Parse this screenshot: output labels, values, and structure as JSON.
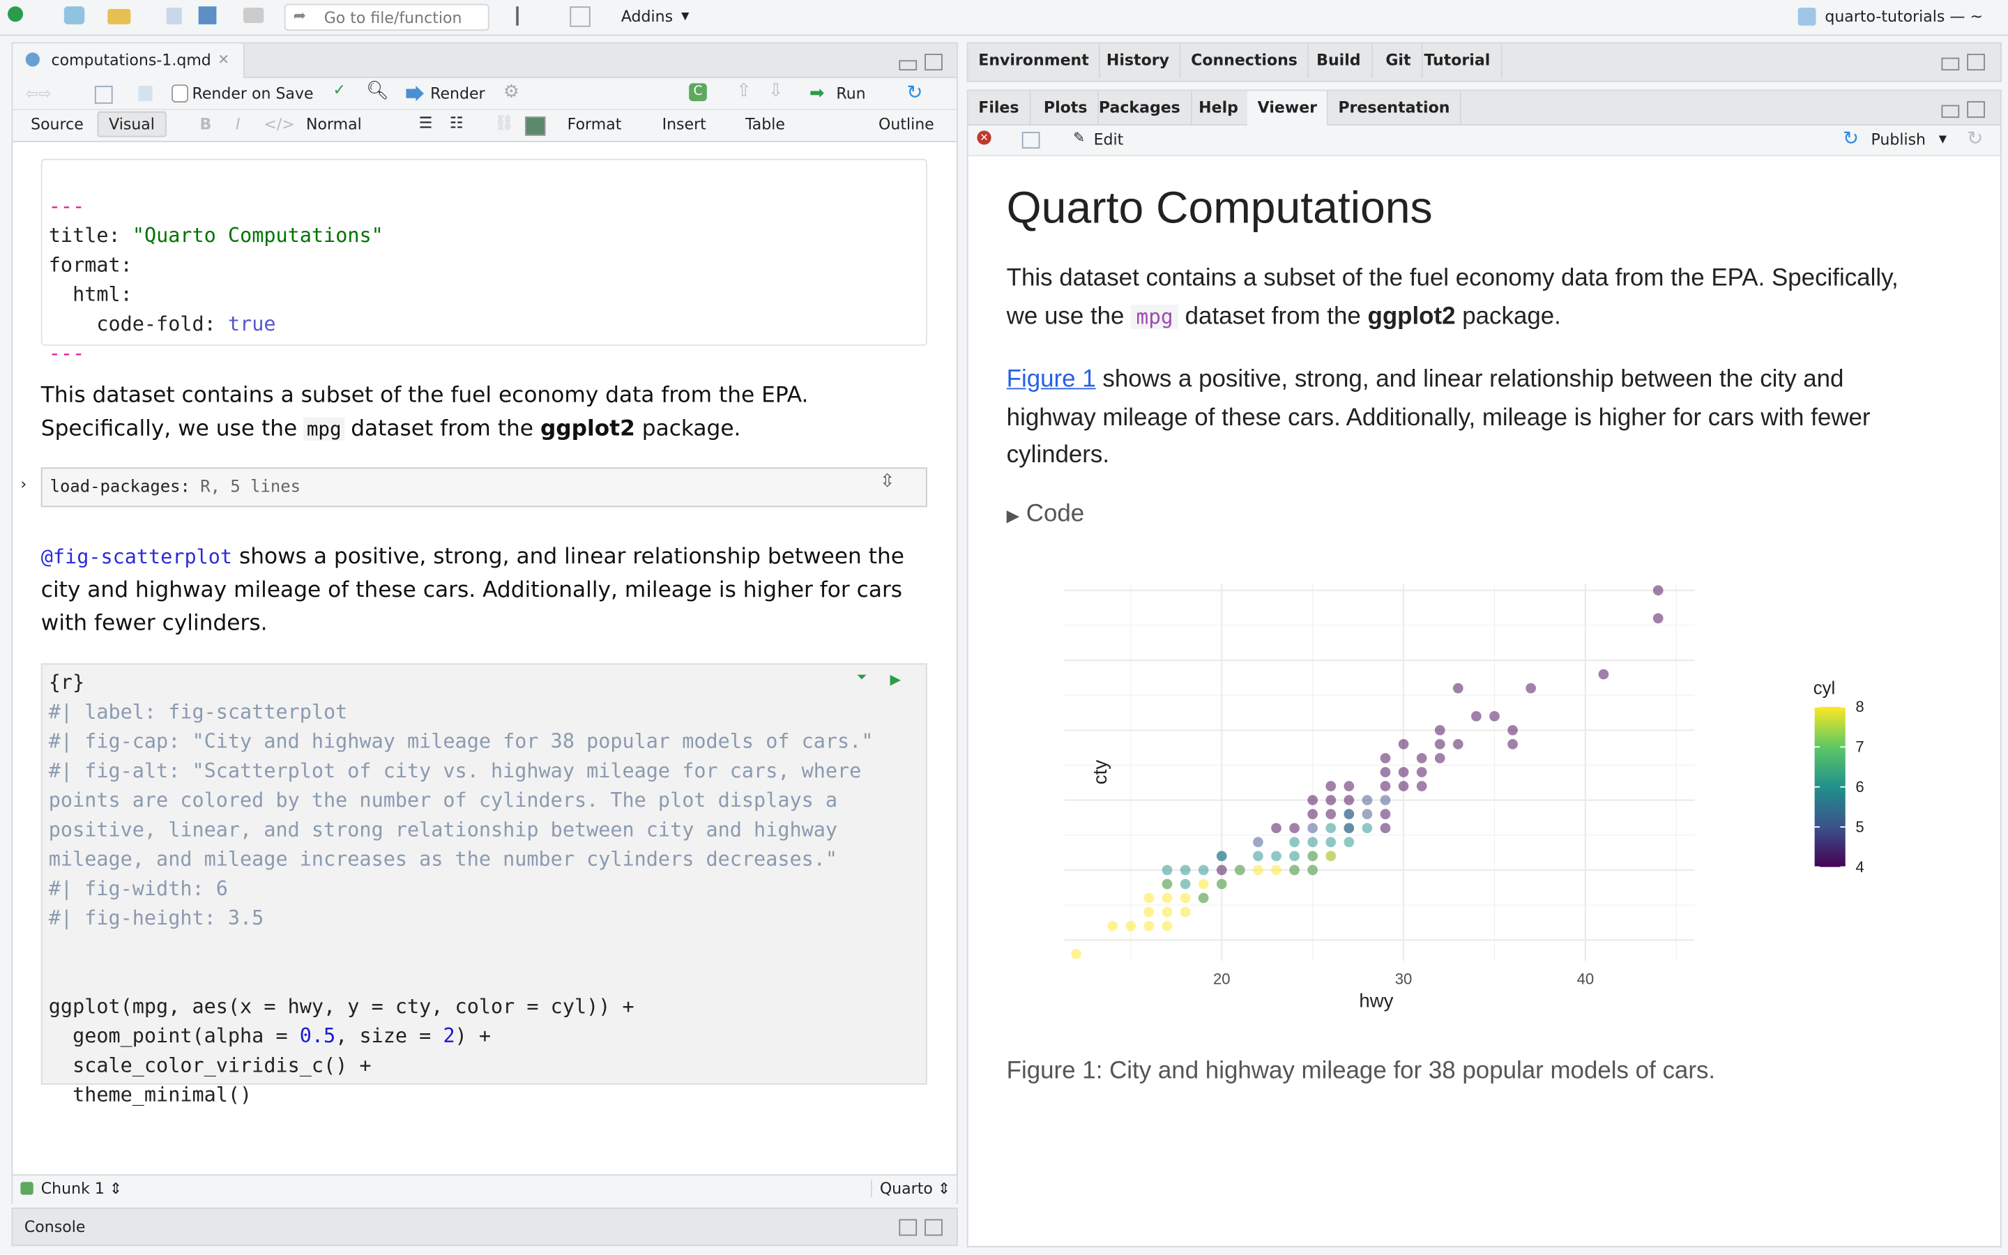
{
  "toolbar": {
    "goto_placeholder": "Go to file/function",
    "addins": "Addins",
    "project": "quarto-tutorials — ~"
  },
  "editor": {
    "tab": "computations-1.qmd",
    "render_on_save": "Render on Save",
    "render": "Render",
    "run": "Run",
    "source": "Source",
    "visual": "Visual",
    "normal": "Normal",
    "format": "Format",
    "insert": "Insert",
    "table": "Table",
    "outline": "Outline",
    "yaml": {
      "dash": "---",
      "l1k": "title:",
      "l1v": "\"Quarto Computations\"",
      "l2": "format:",
      "l3": "html:",
      "l4k": "code-fold:",
      "l4v": "true"
    },
    "p1a": "This dataset contains a subset of the fuel economy data from the EPA.",
    "p1b": "Specifically, we use the ",
    "p1code": "mpg",
    "p1c": " dataset from the ",
    "p1bold": "ggplot2",
    "p1d": " package.",
    "chunk1_label": "load-packages:",
    "chunk1_info": "R, 5 lines",
    "p2ref": "@fig-scatterplot",
    "p2a": " shows a positive, strong, and linear relationship between the",
    "p2b": "city and highway mileage of these cars. Additionally, mileage is higher for cars",
    "p2c": "with fewer cylinders.",
    "code_lines": [
      "{r}",
      "#| label: fig-scatterplot",
      "#| fig-cap: \"City and highway mileage for 38 popular models of cars.\"",
      "#| fig-alt: \"Scatterplot of city vs. highway mileage for cars, where",
      "points are colored by the number of cylinders. The plot displays a",
      "positive, linear, and strong relationship between city and highway",
      "mileage, and mileage increases as the number cylinders decreases.\"",
      "#| fig-width: 6",
      "#| fig-height: 3.5"
    ],
    "r1a": "ggplot(mpg, aes(x = hwy, y = cty, color = cyl)) +",
    "r2a": "  geom_point(alpha = ",
    "r2n1": "0.5",
    "r2b": ", size = ",
    "r2n2": "2",
    "r2c": ") +",
    "r3": "  scale_color_viridis_c() +",
    "r4": "  theme_minimal()",
    "status_chunk": "Chunk 1",
    "status_type": "Quarto"
  },
  "console": {
    "label": "Console"
  },
  "top_tabs": [
    "Environment",
    "History",
    "Connections",
    "Build",
    "Git",
    "Tutorial"
  ],
  "bottom_tabs": [
    "Files",
    "Plots",
    "Packages",
    "Help",
    "Viewer",
    "Presentation"
  ],
  "active_bottom_tab": "Viewer",
  "viewer": {
    "edit": "Edit",
    "publish": "Publish",
    "title": "Quarto Computations",
    "p1a": "This dataset contains a subset of the fuel economy data from the EPA. Specifically,",
    "p1b": "we use the ",
    "p1code": "mpg",
    "p1c": " dataset from the ",
    "p1bold": "ggplot2",
    "p1d": " package.",
    "p2link": "Figure 1",
    "p2a": " shows a positive, strong, and linear relationship between the city and",
    "p2b": "highway mileage of these cars. Additionally, mileage is higher for cars with fewer",
    "p2c": "cylinders.",
    "code_toggle": "Code",
    "caption": "Figure 1: City and highway mileage for 38 popular models of cars."
  },
  "chart_data": {
    "type": "scatter",
    "xlabel": "hwy",
    "ylabel": "cty",
    "legend_title": "cyl",
    "legend_placement": "right",
    "xlim": [
      11,
      46
    ],
    "ylim": [
      8.5,
      35.5
    ],
    "x_ticks": [
      20,
      30,
      40
    ],
    "y_ticks": [
      10,
      15,
      20,
      25,
      30,
      35
    ],
    "legend_ticks": [
      4,
      5,
      6,
      7,
      8
    ],
    "grid": true,
    "color_scale": "viridis",
    "alpha": 0.5,
    "viridis": [
      "#440154",
      "#3b528b",
      "#21908c",
      "#5dc863",
      "#fde725"
    ],
    "points": [
      [
        12,
        9,
        8
      ],
      [
        14,
        11,
        8
      ],
      [
        15,
        11,
        8
      ],
      [
        16,
        11,
        8
      ],
      [
        17,
        11,
        8
      ],
      [
        16,
        12,
        8
      ],
      [
        17,
        12,
        8
      ],
      [
        18,
        12,
        8
      ],
      [
        16,
        13,
        8
      ],
      [
        17,
        13,
        8
      ],
      [
        18,
        13,
        8
      ],
      [
        19,
        13,
        8
      ],
      [
        19,
        13,
        6
      ],
      [
        17,
        14,
        8
      ],
      [
        17,
        14,
        6
      ],
      [
        18,
        14,
        6
      ],
      [
        19,
        14,
        8
      ],
      [
        20,
        14,
        8
      ],
      [
        20,
        14,
        6
      ],
      [
        17,
        15,
        6
      ],
      [
        18,
        15,
        6
      ],
      [
        19,
        15,
        6
      ],
      [
        20,
        15,
        4
      ],
      [
        21,
        15,
        8
      ],
      [
        21,
        15,
        6
      ],
      [
        22,
        15,
        8
      ],
      [
        23,
        15,
        8
      ],
      [
        24,
        15,
        8
      ],
      [
        24,
        15,
        6
      ],
      [
        25,
        15,
        8
      ],
      [
        25,
        15,
        6
      ],
      [
        20,
        16,
        5
      ],
      [
        20,
        16,
        6
      ],
      [
        22,
        16,
        6
      ],
      [
        23,
        16,
        6
      ],
      [
        24,
        16,
        6
      ],
      [
        25,
        16,
        8
      ],
      [
        25,
        16,
        6
      ],
      [
        26,
        16,
        6
      ],
      [
        26,
        16,
        8
      ],
      [
        22,
        17,
        5
      ],
      [
        24,
        17,
        6
      ],
      [
        25,
        17,
        6
      ],
      [
        26,
        17,
        6
      ],
      [
        27,
        17,
        6
      ],
      [
        23,
        18,
        4
      ],
      [
        24,
        18,
        4
      ],
      [
        25,
        18,
        5
      ],
      [
        26,
        18,
        6
      ],
      [
        27,
        18,
        6
      ],
      [
        27,
        18,
        5
      ],
      [
        28,
        18,
        6
      ],
      [
        29,
        18,
        4
      ],
      [
        25,
        19,
        4
      ],
      [
        26,
        19,
        4
      ],
      [
        27,
        19,
        6
      ],
      [
        27,
        19,
        5
      ],
      [
        28,
        19,
        5
      ],
      [
        29,
        19,
        4
      ],
      [
        25,
        20,
        4
      ],
      [
        26,
        20,
        4
      ],
      [
        27,
        20,
        4
      ],
      [
        28,
        20,
        5
      ],
      [
        29,
        20,
        5
      ],
      [
        26,
        21,
        4
      ],
      [
        27,
        21,
        4
      ],
      [
        29,
        21,
        4
      ],
      [
        30,
        21,
        4
      ],
      [
        31,
        21,
        4
      ],
      [
        29,
        22,
        4
      ],
      [
        30,
        22,
        4
      ],
      [
        31,
        22,
        4
      ],
      [
        29,
        23,
        4
      ],
      [
        31,
        23,
        4
      ],
      [
        32,
        23,
        4
      ],
      [
        30,
        24,
        4
      ],
      [
        32,
        24,
        4
      ],
      [
        33,
        24,
        4
      ],
      [
        36,
        24,
        4
      ],
      [
        32,
        25,
        4
      ],
      [
        36,
        25,
        4
      ],
      [
        34,
        26,
        4
      ],
      [
        35,
        26,
        4
      ],
      [
        33,
        28,
        4
      ],
      [
        37,
        28,
        4
      ],
      [
        41,
        29,
        4
      ],
      [
        44,
        33,
        4
      ],
      [
        44,
        35,
        4
      ]
    ]
  }
}
